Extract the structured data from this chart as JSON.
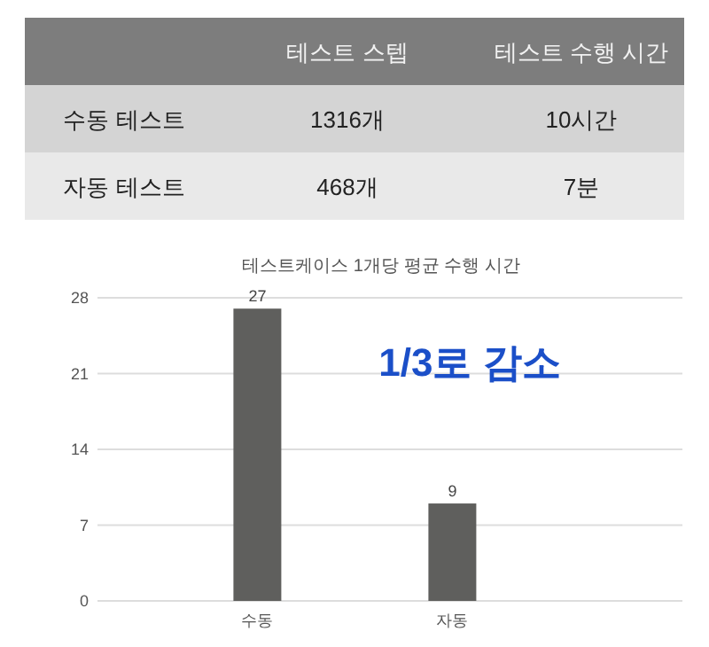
{
  "chart_data": [
    {
      "type": "other",
      "categories": [
        "테스트 스텝",
        "테스트 수행 시간"
      ],
      "y_categories": [
        "수동 테스트",
        "자동 테스트"
      ],
      "cell_labels": [
        [
          "1316개",
          "10시간"
        ],
        [
          "468개",
          "7분"
        ]
      ]
    },
    {
      "type": "bar",
      "title": "테스트케이스 1개당 평균 수행 시간",
      "categories": [
        "수동",
        "자동"
      ],
      "values": [
        27,
        9
      ],
      "color": "#5f5f5d",
      "ylim": [
        0,
        28
      ],
      "yticks": [
        0,
        7,
        14,
        21,
        28
      ],
      "grid": "y",
      "data_labels": true,
      "annotations": [
        "1/3로 감소"
      ]
    }
  ]
}
